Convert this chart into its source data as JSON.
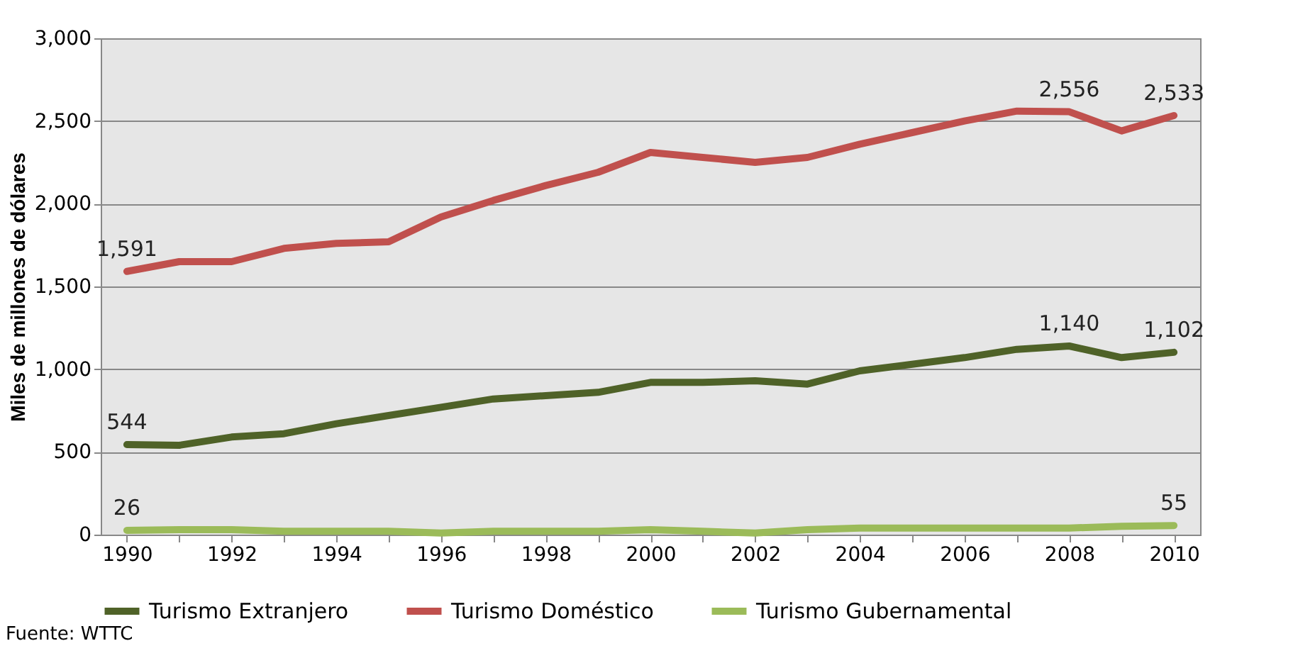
{
  "chart_data": {
    "type": "line",
    "ylabel": "Miles de millones de dólares",
    "categories": [
      "1990",
      null,
      "1992",
      null,
      "1994",
      null,
      "1996",
      null,
      "1998",
      null,
      "2000",
      null,
      "2002",
      null,
      "2004",
      null,
      "2006",
      null,
      "2008",
      null,
      "2010"
    ],
    "series": [
      {
        "name": "Turismo Extranjero",
        "color": "#4f6228",
        "values": [
          544,
          540,
          590,
          610,
          670,
          720,
          770,
          820,
          840,
          860,
          920,
          920,
          930,
          910,
          990,
          1030,
          1070,
          1120,
          1140,
          1070,
          1102
        ],
        "value_labels": [
          "544",
          null,
          null,
          null,
          null,
          null,
          null,
          null,
          null,
          null,
          null,
          null,
          null,
          null,
          null,
          null,
          null,
          null,
          "1,140",
          null,
          "1,102"
        ]
      },
      {
        "name": "Turismo Doméstico",
        "color": "#c0504d",
        "values": [
          1591,
          1650,
          1650,
          1730,
          1760,
          1770,
          1920,
          2020,
          2110,
          2190,
          2310,
          2280,
          2250,
          2280,
          2360,
          2430,
          2500,
          2560,
          2556,
          2440,
          2533
        ],
        "value_labels": [
          "1,591",
          null,
          null,
          null,
          null,
          null,
          null,
          null,
          null,
          null,
          null,
          null,
          null,
          null,
          null,
          null,
          null,
          null,
          "2,556",
          null,
          "2,533"
        ]
      },
      {
        "name": "Turismo Gubernamental",
        "color": "#9bbb59",
        "values": [
          26,
          30,
          30,
          20,
          20,
          20,
          10,
          20,
          20,
          20,
          30,
          20,
          10,
          30,
          40,
          40,
          40,
          40,
          40,
          50,
          55
        ],
        "value_labels": [
          "26",
          null,
          null,
          null,
          null,
          null,
          null,
          null,
          null,
          null,
          null,
          null,
          null,
          null,
          null,
          null,
          null,
          null,
          null,
          null,
          "55"
        ]
      }
    ],
    "ylim": [
      0,
      3000
    ],
    "yticks": [
      0,
      {
        "value": 500,
        "label": "500"
      },
      {
        "value": 1000,
        "label": "1,000"
      },
      {
        "value": 1500,
        "label": "1,500"
      },
      {
        "value": 2000,
        "label": "2,000"
      },
      {
        "value": 2500,
        "label": "2,500"
      },
      {
        "value": 3000,
        "label": "3,000"
      }
    ],
    "grid": "y",
    "legend": "bottom",
    "marker": "none",
    "line_style": "solid",
    "annotations": [
      "Fuente: WTTC"
    ]
  }
}
